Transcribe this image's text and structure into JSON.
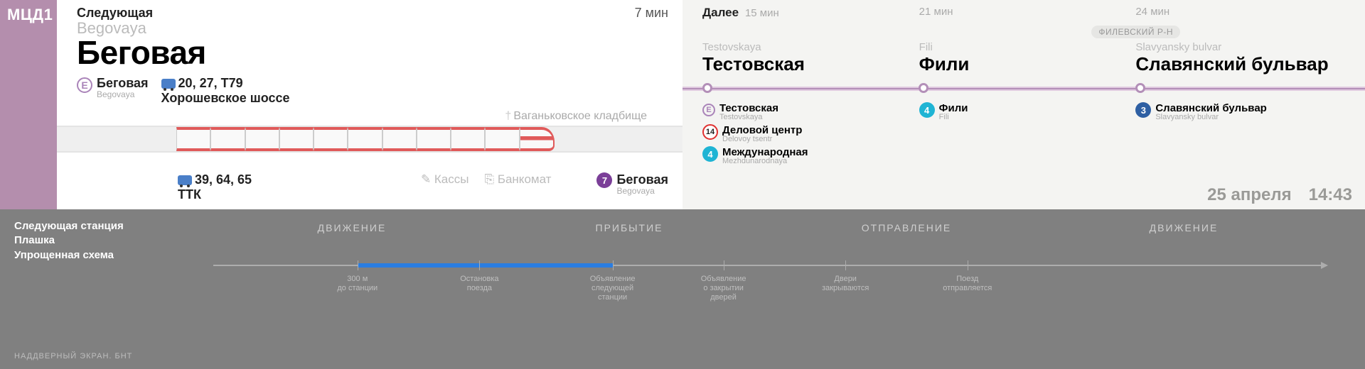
{
  "line_badge": "МЦД1",
  "colors": {
    "mcd1": "#b48ead",
    "line7": "#7b3f98",
    "line4": "#1fb4d4",
    "line3": "#2e5fa3",
    "line14_ring": "#e03030",
    "train_accent": "#e05a5a",
    "timeline_blue": "#2a7de1",
    "timeline_grey": "#adadad",
    "panel_grey": "#808080"
  },
  "main": {
    "next_label": "Следующая",
    "eta": "7 мин",
    "translit": "Begovaya",
    "station": "Беговая",
    "transfer_e": {
      "symbol": "E",
      "name": "Беговая",
      "translit": "Begovaya"
    },
    "bus_top": {
      "routes": "20, 27, Т79",
      "street": "Хорошевское шоссе"
    },
    "far_landmark": "Ваганьковское кладбище",
    "bus_bottom": {
      "routes": "39, 64, 65",
      "street": "ТТК"
    },
    "amenity_kassy": "Кассы",
    "amenity_atm": "Банкомат",
    "metro7": {
      "name": "Беговая",
      "translit": "Begovaya",
      "num": "7"
    }
  },
  "next": {
    "label": "Далее",
    "district": "ФИЛЕВСКИЙ Р-Н",
    "stations": [
      {
        "eta": "15 мин",
        "translit": "Testovskaya",
        "name": "Тестовская",
        "transfers": [
          {
            "badge": "E",
            "cls": "circle",
            "name": "Тестовская",
            "translit": "Testovskaya"
          },
          {
            "badge": "14",
            "cls": "line14",
            "name": "Деловой центр",
            "translit": "Delovoy tsentr"
          },
          {
            "badge": "4",
            "cls": "line4",
            "name": "Международная",
            "translit": "Mezhdunarodnaya"
          }
        ]
      },
      {
        "eta": "21 мин",
        "translit": "Fili",
        "name": "Фили",
        "transfers": [
          {
            "badge": "4",
            "cls": "line4",
            "name": "Фили",
            "translit": "Fili"
          }
        ]
      },
      {
        "eta": "24 мин",
        "translit": "Slavyansky bulvar",
        "name": "Славянский бульвар",
        "transfers": [
          {
            "badge": "3",
            "cls": "line3",
            "name": "Славянский бульвар",
            "translit": "Slavyansky bulvar"
          }
        ]
      }
    ],
    "date": "25 апреля",
    "time": "14:43"
  },
  "lower": {
    "left_lines": [
      "Следующая станция",
      "Плашка",
      "Упрощенная схема"
    ],
    "caption": "НАДДВЕРНЫЙ ЭКРАН. БНТ",
    "phases": [
      "ДВИЖЕНИЕ",
      "ПРИБЫТИЕ",
      "ОТПРАВЛЕНИЕ",
      "ДВИЖЕНИЕ"
    ],
    "blue_segment": {
      "start_pct": 13,
      "end_pct": 36
    },
    "ticks": [
      {
        "pct": 13,
        "label": "300 м\nдо станции"
      },
      {
        "pct": 24,
        "label": "Остановка\nпоезда"
      },
      {
        "pct": 36,
        "label": "Объявление\nследующей\nстанции"
      },
      {
        "pct": 46,
        "label": "Объявление\nо закрытии\nдверей"
      },
      {
        "pct": 57,
        "label": "Двери\nзакрываются"
      },
      {
        "pct": 68,
        "label": "Поезд\nотправляется"
      }
    ]
  }
}
